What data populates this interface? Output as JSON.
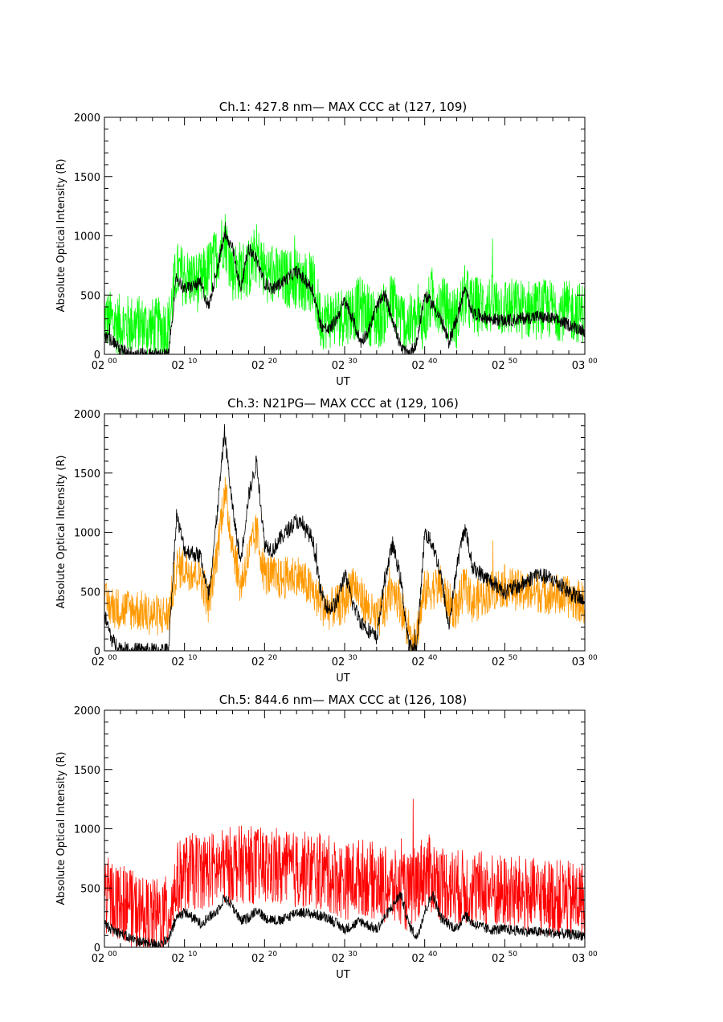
{
  "chart_data": [
    {
      "type": "line",
      "title": "Ch.1: 427.8 nm— MAX CCC at (127, 109)",
      "xlabel": "UT",
      "ylabel": "Absolute Optical Intensity (R)",
      "xlim": [
        "02:00",
        "03:00"
      ],
      "ylim": [
        0,
        2000
      ],
      "yticks": [
        "0",
        "500",
        "1000",
        "1500",
        "2000"
      ],
      "xticks": [
        {
          "base": "02",
          "sup": "00"
        },
        {
          "base": "02",
          "sup": "10"
        },
        {
          "base": "02",
          "sup": "20"
        },
        {
          "base": "02",
          "sup": "30"
        },
        {
          "base": "02",
          "sup": "40"
        },
        {
          "base": "02",
          "sup": "50"
        },
        {
          "base": "03",
          "sup": "00"
        }
      ],
      "grid": false,
      "series": [
        {
          "color": "#00ff00",
          "noise": 260,
          "x": [
            "02:00",
            "02:02",
            "02:04",
            "02:06",
            "02:08",
            "02:09",
            "02:10",
            "02:12",
            "02:14",
            "02:15",
            "02:16",
            "02:18",
            "02:19",
            "02:20",
            "02:22",
            "02:24",
            "02:26",
            "02:27",
            "02:28",
            "02:30",
            "02:32",
            "02:34",
            "02:35",
            "02:36",
            "02:37",
            "02:38",
            "02:40",
            "02:41",
            "02:42",
            "02:43",
            "02:44",
            "02:45",
            "02:46",
            "02:48",
            "02:50",
            "02:52",
            "02:54",
            "02:56",
            "02:58",
            "03:00"
          ],
          "y": [
            300,
            250,
            250,
            220,
            230,
            700,
            650,
            600,
            820,
            1000,
            700,
            720,
            850,
            700,
            640,
            640,
            600,
            300,
            300,
            330,
            400,
            280,
            350,
            450,
            300,
            250,
            300,
            500,
            420,
            350,
            300,
            500,
            400,
            420,
            400,
            380,
            380,
            380,
            360,
            350
          ]
        },
        {
          "color": "#000000",
          "noise": 55,
          "x": [
            "02:00",
            "02:01",
            "02:02",
            "02:03",
            "02:04",
            "02:06",
            "02:08",
            "02:09",
            "02:10",
            "02:12",
            "02:13",
            "02:14",
            "02:15",
            "02:16",
            "02:17",
            "02:18",
            "02:19",
            "02:20",
            "02:21",
            "02:22",
            "02:24",
            "02:26",
            "02:27",
            "02:28",
            "02:29",
            "02:30",
            "02:31",
            "02:32",
            "02:33",
            "02:34",
            "02:35",
            "02:36",
            "02:37",
            "02:38",
            "02:39",
            "02:40",
            "02:41",
            "02:42",
            "02:43",
            "02:44",
            "02:45",
            "02:46",
            "02:48",
            "02:50",
            "02:52",
            "02:54",
            "02:56",
            "02:58",
            "03:00"
          ],
          "y": [
            150,
            120,
            40,
            20,
            5,
            0,
            0,
            650,
            550,
            600,
            400,
            700,
            1000,
            900,
            550,
            900,
            800,
            600,
            550,
            600,
            700,
            550,
            250,
            200,
            300,
            450,
            300,
            100,
            200,
            400,
            500,
            300,
            50,
            0,
            100,
            500,
            420,
            300,
            100,
            300,
            550,
            350,
            300,
            280,
            300,
            320,
            300,
            250,
            200
          ]
        }
      ]
    },
    {
      "type": "line",
      "title": "Ch.3: N21PG— MAX CCC at (129, 106)",
      "xlabel": "UT",
      "ylabel": "Absolute Optical Intensity (R)",
      "xlim": [
        "02:00",
        "03:00"
      ],
      "ylim": [
        0,
        2000
      ],
      "yticks": [
        "0",
        "500",
        "1000",
        "1500",
        "2000"
      ],
      "xticks": [
        {
          "base": "02",
          "sup": "00"
        },
        {
          "base": "02",
          "sup": "10"
        },
        {
          "base": "02",
          "sup": "20"
        },
        {
          "base": "02",
          "sup": "30"
        },
        {
          "base": "02",
          "sup": "40"
        },
        {
          "base": "02",
          "sup": "50"
        },
        {
          "base": "03",
          "sup": "00"
        }
      ],
      "grid": false,
      "series": [
        {
          "color": "#ff9900",
          "noise": 180,
          "x": [
            "02:00",
            "02:02",
            "02:04",
            "02:06",
            "02:08",
            "02:09",
            "02:10",
            "02:12",
            "02:13",
            "02:14",
            "02:15",
            "02:16",
            "02:17",
            "02:18",
            "02:19",
            "02:20",
            "02:22",
            "02:24",
            "02:26",
            "02:27",
            "02:28",
            "02:30",
            "02:31",
            "02:32",
            "02:34",
            "02:35",
            "02:36",
            "02:37",
            "02:38",
            "02:39",
            "02:40",
            "02:42",
            "02:43",
            "02:44",
            "02:45",
            "02:46",
            "02:48",
            "02:50",
            "02:52",
            "02:54",
            "02:56",
            "02:58",
            "03:00"
          ],
          "y": [
            400,
            350,
            350,
            300,
            300,
            700,
            700,
            650,
            400,
            800,
            1350,
            900,
            550,
            800,
            1000,
            650,
            600,
            650,
            500,
            400,
            350,
            400,
            600,
            450,
            250,
            350,
            550,
            400,
            120,
            150,
            500,
            550,
            400,
            350,
            550,
            400,
            500,
            550,
            500,
            500,
            480,
            450,
            400
          ]
        },
        {
          "color": "#000000",
          "noise": 70,
          "x": [
            "02:00",
            "02:01",
            "02:02",
            "02:03",
            "02:04",
            "02:06",
            "02:08",
            "02:09",
            "02:10",
            "02:12",
            "02:13",
            "02:14",
            "02:15",
            "02:16",
            "02:17",
            "02:18",
            "02:19",
            "02:20",
            "02:21",
            "02:22",
            "02:24",
            "02:26",
            "02:27",
            "02:28",
            "02:29",
            "02:30",
            "02:31",
            "02:32",
            "02:34",
            "02:35",
            "02:36",
            "02:37",
            "02:38",
            "02:39",
            "02:40",
            "02:41",
            "02:42",
            "02:43",
            "02:44",
            "02:45",
            "02:46",
            "02:48",
            "02:50",
            "02:52",
            "02:54",
            "02:56",
            "02:58",
            "03:00"
          ],
          "y": [
            300,
            80,
            20,
            0,
            0,
            0,
            0,
            1150,
            850,
            800,
            450,
            1100,
            1850,
            1200,
            750,
            1300,
            1600,
            900,
            850,
            950,
            1100,
            950,
            500,
            350,
            400,
            650,
            400,
            250,
            100,
            600,
            900,
            600,
            50,
            0,
            1000,
            900,
            650,
            200,
            700,
            1050,
            700,
            600,
            500,
            550,
            650,
            600,
            500,
            400
          ]
        }
      ]
    },
    {
      "type": "line",
      "title": "Ch.5: 844.6 nm— MAX CCC at (126, 108)",
      "xlabel": "UT",
      "ylabel": "Absolute Optical Intensity (R)",
      "xlim": [
        "02:00",
        "03:00"
      ],
      "ylim": [
        0,
        2000
      ],
      "yticks": [
        "0",
        "500",
        "1000",
        "1500",
        "2000"
      ],
      "xticks": [
        {
          "base": "02",
          "sup": "00"
        },
        {
          "base": "02",
          "sup": "10"
        },
        {
          "base": "02",
          "sup": "20"
        },
        {
          "base": "02",
          "sup": "30"
        },
        {
          "base": "02",
          "sup": "40"
        },
        {
          "base": "02",
          "sup": "50"
        },
        {
          "base": "03",
          "sup": "00"
        }
      ],
      "grid": false,
      "series": [
        {
          "color": "#ff0000",
          "noise": 330,
          "x": [
            "02:00",
            "02:02",
            "02:04",
            "02:06",
            "02:08",
            "02:09",
            "02:10",
            "02:12",
            "02:14",
            "02:16",
            "02:18",
            "02:20",
            "02:22",
            "02:24",
            "02:26",
            "02:28",
            "02:30",
            "02:32",
            "02:34",
            "02:36",
            "02:38",
            "02:40",
            "02:42",
            "02:44",
            "02:46",
            "02:48",
            "02:50",
            "02:52",
            "02:54",
            "02:56",
            "02:58",
            "03:00"
          ],
          "y": [
            450,
            380,
            300,
            250,
            280,
            550,
            620,
            650,
            650,
            700,
            700,
            680,
            650,
            650,
            650,
            620,
            550,
            600,
            550,
            500,
            450,
            650,
            550,
            500,
            500,
            480,
            450,
            450,
            420,
            420,
            400,
            400
          ]
        },
        {
          "color": "#000000",
          "noise": 45,
          "x": [
            "02:00",
            "02:01",
            "02:02",
            "02:03",
            "02:04",
            "02:05",
            "02:06",
            "02:07",
            "02:08",
            "02:09",
            "02:10",
            "02:12",
            "02:14",
            "02:15",
            "02:16",
            "02:17",
            "02:18",
            "02:19",
            "02:20",
            "02:22",
            "02:24",
            "02:26",
            "02:28",
            "02:30",
            "02:32",
            "02:34",
            "02:36",
            "02:37",
            "02:38",
            "02:39",
            "02:40",
            "02:41",
            "02:42",
            "02:44",
            "02:45",
            "02:46",
            "02:48",
            "02:50",
            "02:52",
            "02:54",
            "02:56",
            "02:58",
            "03:00"
          ],
          "y": [
            200,
            150,
            120,
            80,
            60,
            40,
            30,
            30,
            60,
            250,
            300,
            200,
            300,
            420,
            350,
            220,
            250,
            320,
            250,
            220,
            300,
            280,
            250,
            150,
            220,
            150,
            350,
            450,
            200,
            80,
            300,
            450,
            250,
            150,
            280,
            200,
            150,
            150,
            140,
            130,
            120,
            110,
            100
          ]
        }
      ]
    }
  ]
}
